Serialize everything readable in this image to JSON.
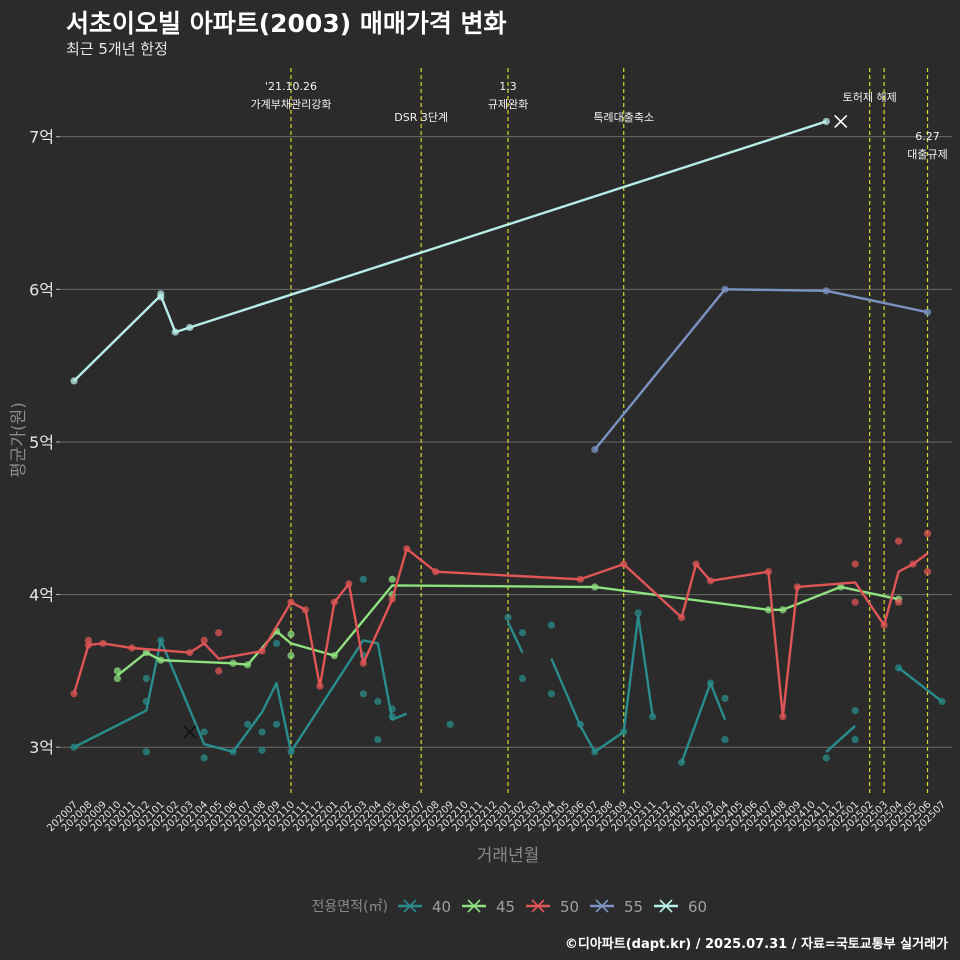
{
  "chart_data": {
    "type": "line",
    "title": "서초이오빌 아파트(2003) 매매가격 변화",
    "subtitle": "최근 5개년 한정",
    "xlabel": "거래년월",
    "ylabel": "평균가(원)",
    "caption": "©디아파트(dapt.kr) / 2025.07.31 / 자료=국토교통부 실거래가",
    "legend_title": "전용면적(㎡)",
    "legend_position": "bottom",
    "grid": true,
    "ylim": [
      2.7,
      7.45
    ],
    "y_ticks": [
      3,
      4,
      5,
      6,
      7
    ],
    "y_tick_labels": [
      "3억",
      "4억",
      "5억",
      "6억",
      "7억"
    ],
    "categories": [
      "202007",
      "202008",
      "202009",
      "202010",
      "202011",
      "202012",
      "202101",
      "202102",
      "202103",
      "202104",
      "202105",
      "202106",
      "202107",
      "202108",
      "202109",
      "202110",
      "202111",
      "202112",
      "202201",
      "202202",
      "202203",
      "202204",
      "202205",
      "202206",
      "202207",
      "202208",
      "202209",
      "202210",
      "202211",
      "202212",
      "202301",
      "202302",
      "202303",
      "202304",
      "202305",
      "202306",
      "202307",
      "202308",
      "202309",
      "202310",
      "202311",
      "202312",
      "202401",
      "202402",
      "202403",
      "202404",
      "202405",
      "202406",
      "202407",
      "202408",
      "202409",
      "202410",
      "202411",
      "202412",
      "202501",
      "202502",
      "202503",
      "202504",
      "202505",
      "202506",
      "202507"
    ],
    "series": [
      {
        "name": "40",
        "color": "#2a8c8c",
        "points": [
          [
            0,
            3.0
          ],
          [
            5,
            3.24
          ],
          [
            6,
            3.7
          ],
          [
            9,
            3.02
          ],
          [
            11,
            2.97
          ],
          [
            12,
            3.1
          ],
          [
            13,
            3.23
          ],
          [
            14,
            3.42
          ],
          [
            15,
            2.97
          ],
          [
            20,
            3.7
          ],
          [
            21,
            3.68
          ],
          [
            22,
            3.18
          ],
          [
            23,
            3.22
          ],
          null,
          [
            30,
            3.82
          ],
          [
            31,
            3.62
          ],
          null,
          [
            33,
            3.58
          ],
          [
            35,
            3.14
          ],
          [
            36,
            2.97
          ],
          [
            38,
            3.1
          ],
          [
            39,
            3.86
          ],
          [
            40,
            3.2
          ],
          null,
          [
            42,
            2.9
          ],
          [
            44,
            3.42
          ],
          [
            45,
            3.18
          ],
          null,
          [
            52,
            2.97
          ],
          [
            54,
            3.14
          ],
          null,
          [
            57,
            3.52
          ],
          [
            60,
            3.3
          ]
        ],
        "dots": [
          [
            0,
            3.0
          ],
          [
            5,
            3.45
          ],
          [
            5,
            3.3
          ],
          [
            5,
            2.97
          ],
          [
            6,
            3.7
          ],
          [
            9,
            3.1
          ],
          [
            9,
            2.93
          ],
          [
            11,
            2.97
          ],
          [
            12,
            3.15
          ],
          [
            13,
            3.1
          ],
          [
            13,
            2.98
          ],
          [
            14,
            3.68
          ],
          [
            14,
            3.15
          ],
          [
            15,
            2.97
          ],
          [
            20,
            4.1
          ],
          [
            20,
            3.35
          ],
          [
            20,
            3.6
          ],
          [
            21,
            3.3
          ],
          [
            21,
            3.05
          ],
          [
            22,
            3.25
          ],
          [
            22,
            3.2
          ],
          [
            26,
            3.15
          ],
          [
            30,
            3.85
          ],
          [
            31,
            3.75
          ],
          [
            31,
            3.45
          ],
          [
            33,
            3.8
          ],
          [
            33,
            3.35
          ],
          [
            35,
            3.15
          ],
          [
            36,
            2.97
          ],
          [
            38,
            3.1
          ],
          [
            39,
            3.88
          ],
          [
            40,
            3.2
          ],
          [
            42,
            2.9
          ],
          [
            44,
            3.42
          ],
          [
            45,
            3.32
          ],
          [
            45,
            3.05
          ],
          [
            52,
            2.93
          ],
          [
            54,
            3.24
          ],
          [
            54,
            3.05
          ],
          [
            57,
            3.52
          ],
          [
            60,
            3.3
          ]
        ],
        "crosses": [
          [
            8,
            3.1
          ]
        ]
      },
      {
        "name": "45",
        "color": "#8fe07f",
        "points": [
          [
            3,
            3.47
          ],
          [
            5,
            3.62
          ],
          [
            6,
            3.57
          ],
          [
            11,
            3.55
          ],
          [
            12,
            3.54
          ],
          [
            14,
            3.76
          ],
          [
            15,
            3.68
          ],
          [
            18,
            3.6
          ],
          [
            22,
            4.06
          ],
          [
            35,
            4.05
          ],
          [
            36,
            4.05
          ],
          [
            48,
            3.9
          ],
          [
            49,
            3.9
          ],
          [
            53,
            4.05
          ],
          [
            57,
            3.97
          ]
        ],
        "dots": [
          [
            3,
            3.5
          ],
          [
            3,
            3.45
          ],
          [
            5,
            3.62
          ],
          [
            6,
            3.57
          ],
          [
            11,
            3.55
          ],
          [
            12,
            3.54
          ],
          [
            14,
            3.76
          ],
          [
            15,
            3.74
          ],
          [
            15,
            3.6
          ],
          [
            18,
            3.6
          ],
          [
            22,
            4.1
          ],
          [
            22,
            4.0
          ],
          [
            36,
            4.05
          ],
          [
            48,
            3.9
          ],
          [
            49,
            3.9
          ],
          [
            53,
            4.05
          ],
          [
            57,
            3.97
          ]
        ],
        "crosses": []
      },
      {
        "name": "50",
        "color": "#e05555",
        "points": [
          [
            0,
            3.35
          ],
          [
            1,
            3.67
          ],
          [
            2,
            3.68
          ],
          [
            4,
            3.65
          ],
          [
            8,
            3.62
          ],
          [
            9,
            3.68
          ],
          [
            10,
            3.58
          ],
          [
            13,
            3.63
          ],
          [
            15,
            3.95
          ],
          [
            16,
            3.9
          ],
          [
            17,
            3.4
          ],
          [
            18,
            3.95
          ],
          [
            19,
            4.07
          ],
          [
            20,
            3.55
          ],
          [
            22,
            3.97
          ],
          [
            23,
            4.3
          ],
          [
            25,
            4.15
          ],
          [
            35,
            4.1
          ],
          [
            38,
            4.2
          ],
          [
            42,
            3.85
          ],
          [
            43,
            4.2
          ],
          [
            44,
            4.09
          ],
          [
            48,
            4.15
          ],
          [
            49,
            3.2
          ],
          [
            50,
            4.05
          ],
          [
            54,
            4.08
          ],
          [
            56,
            3.8
          ],
          [
            57,
            4.15
          ],
          [
            58,
            4.2
          ],
          [
            59,
            4.27
          ]
        ],
        "dots": [
          [
            0,
            3.35
          ],
          [
            1,
            3.7
          ],
          [
            1,
            3.67
          ],
          [
            2,
            3.68
          ],
          [
            4,
            3.65
          ],
          [
            8,
            3.62
          ],
          [
            9,
            3.7
          ],
          [
            10,
            3.75
          ],
          [
            10,
            3.5
          ],
          [
            13,
            3.63
          ],
          [
            15,
            3.95
          ],
          [
            16,
            3.9
          ],
          [
            17,
            3.4
          ],
          [
            18,
            3.95
          ],
          [
            19,
            4.07
          ],
          [
            20,
            3.55
          ],
          [
            22,
            3.97
          ],
          [
            23,
            4.3
          ],
          [
            25,
            4.15
          ],
          [
            35,
            4.1
          ],
          [
            38,
            4.2
          ],
          [
            42,
            3.85
          ],
          [
            43,
            4.2
          ],
          [
            44,
            4.09
          ],
          [
            48,
            4.15
          ],
          [
            49,
            3.2
          ],
          [
            50,
            4.05
          ],
          [
            54,
            4.2
          ],
          [
            54,
            3.95
          ],
          [
            56,
            3.8
          ],
          [
            57,
            4.35
          ],
          [
            57,
            3.95
          ],
          [
            58,
            4.2
          ],
          [
            59,
            4.4
          ],
          [
            59,
            4.15
          ]
        ],
        "crosses": []
      },
      {
        "name": "55",
        "color": "#7b93c2",
        "points": [
          [
            36,
            4.95
          ],
          [
            45,
            6.0
          ],
          [
            52,
            5.99
          ],
          [
            59,
            5.85
          ]
        ],
        "dots": [
          [
            36,
            4.95
          ],
          [
            45,
            6.0
          ],
          [
            52,
            5.99
          ],
          [
            59,
            5.85
          ]
        ],
        "crosses": []
      },
      {
        "name": "60",
        "color": "#b8ede8",
        "points": [
          [
            0,
            5.4
          ],
          [
            6,
            5.96
          ],
          [
            7,
            5.72
          ],
          [
            8,
            5.75
          ],
          [
            52,
            7.1
          ]
        ],
        "dots": [
          [
            0,
            5.4
          ],
          [
            6,
            5.97
          ],
          [
            6,
            5.95
          ],
          [
            7,
            5.72
          ],
          [
            8,
            5.75
          ],
          [
            52,
            7.1
          ]
        ],
        "crosses": [
          [
            53,
            7.1
          ]
        ]
      }
    ],
    "events": [
      {
        "x": 15,
        "lines": [
          "'21.10.26",
          "가계부채관리강화"
        ],
        "level": 0
      },
      {
        "x": 24,
        "lines": [
          "DSR 3단계"
        ],
        "level": 2
      },
      {
        "x": 30,
        "lines": [
          "1.3",
          "규제완화"
        ],
        "level": 0
      },
      {
        "x": 38,
        "lines": [
          "특례대출축소"
        ],
        "level": 2
      },
      {
        "x": 55,
        "lines": [
          "토허제 해제"
        ],
        "level": 1
      },
      {
        "x": 56,
        "lines": [],
        "level": 0
      },
      {
        "x": 59,
        "lines": [
          "6.27",
          "대출규제"
        ],
        "level": 3
      }
    ]
  }
}
